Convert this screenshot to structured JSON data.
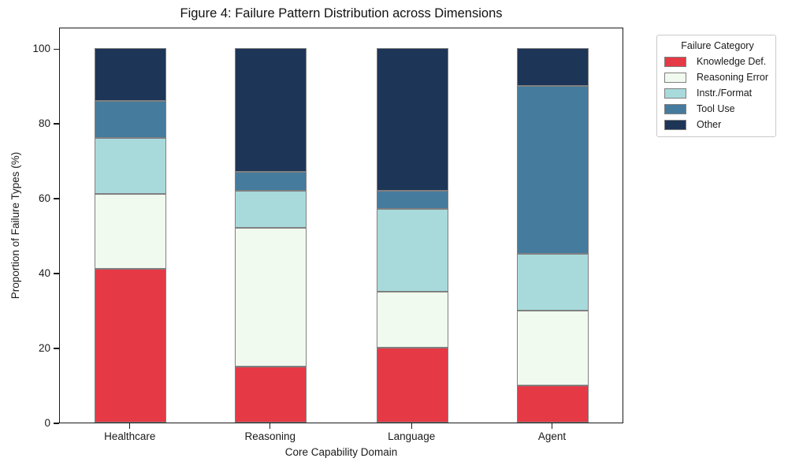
{
  "chart_data": {
    "type": "bar",
    "stacked": true,
    "title": "Figure 4: Failure Pattern Distribution across Dimensions",
    "xlabel": "Core Capability Domain",
    "ylabel": "Proportion of Failure Types (%)",
    "categories": [
      "Healthcare",
      "Reasoning",
      "Language",
      "Agent"
    ],
    "series": [
      {
        "name": "Knowledge Def.",
        "color": "#e63946",
        "values": [
          41,
          15,
          20,
          10
        ]
      },
      {
        "name": "Reasoning Error",
        "color": "#f1faee",
        "values": [
          20,
          37,
          15,
          20
        ]
      },
      {
        "name": "Instr./Format",
        "color": "#a8dadc",
        "values": [
          15,
          10,
          22,
          15
        ]
      },
      {
        "name": "Tool Use",
        "color": "#457b9d",
        "values": [
          10,
          5,
          5,
          45
        ]
      },
      {
        "name": "Other",
        "color": "#1d3557",
        "values": [
          14,
          33,
          38,
          10
        ]
      }
    ],
    "yticks": [
      0,
      20,
      40,
      60,
      80,
      100
    ],
    "ylim": [
      0,
      105
    ],
    "grid": false,
    "bar_edge_color": "#808080",
    "legend": {
      "title": "Failure Category",
      "position": "upper-right-outside"
    }
  }
}
